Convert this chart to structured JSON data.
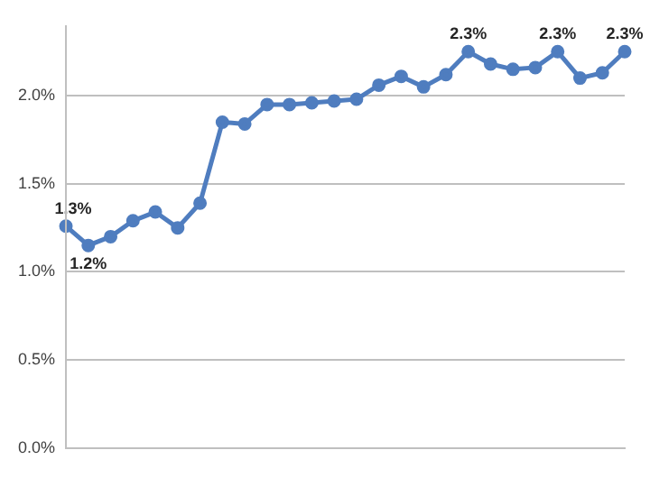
{
  "chart_data": {
    "type": "line",
    "categories": [
      null,
      null,
      null,
      null,
      null,
      null,
      null,
      null,
      null,
      null,
      null,
      null,
      null,
      null,
      null,
      null,
      null,
      null,
      null,
      null,
      null,
      null,
      null,
      null,
      null,
      null
    ],
    "series": [
      {
        "color": "#4f7dbf",
        "values": [
          1.26,
          1.15,
          1.2,
          1.29,
          1.34,
          1.25,
          1.39,
          1.85,
          1.84,
          1.95,
          1.95,
          1.96,
          1.97,
          1.98,
          2.06,
          2.11,
          2.05,
          2.12,
          2.25,
          2.18,
          2.15,
          2.16,
          2.25,
          2.1,
          2.13,
          2.25
        ],
        "value_labels": [
          "1.3%",
          "1.2%",
          null,
          null,
          null,
          null,
          null,
          null,
          null,
          null,
          null,
          null,
          null,
          null,
          null,
          null,
          null,
          null,
          "2.3%",
          null,
          null,
          null,
          "2.3%",
          null,
          null,
          "2.3%"
        ]
      }
    ],
    "ylim": [
      0,
      2.4
    ],
    "yticks": [
      {
        "value": 0,
        "label": "0.0%"
      },
      {
        "value": 0.5,
        "label": "0.5%"
      },
      {
        "value": 1,
        "label": "1.0%"
      },
      {
        "value": 1.5,
        "label": "1.5%"
      },
      {
        "value": 2,
        "label": "2.0%"
      }
    ],
    "grid": "y",
    "marker": "circle",
    "line_style": "solid",
    "legend": false
  }
}
